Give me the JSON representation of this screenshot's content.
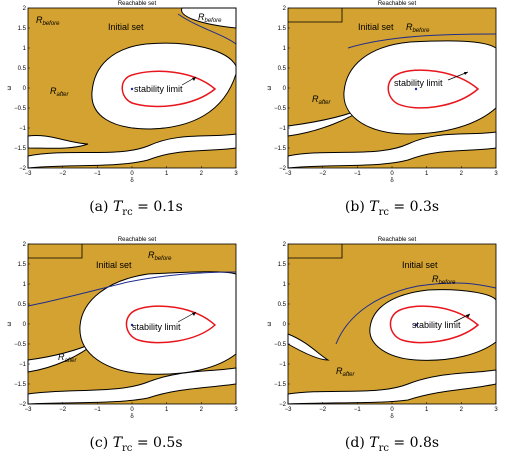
{
  "colors": {
    "region": "#d4a230",
    "boundary": "#000000",
    "stability": "#e8161c",
    "reach_curve": "#1f2d8c",
    "origin": "#1e2ba0"
  },
  "chart_data": [
    {
      "type": "contour",
      "title": "Reachable set",
      "xlabel": "δ",
      "ylabel": "ω",
      "xlim": [
        -3,
        3
      ],
      "ylim": [
        -2,
        2
      ],
      "xticks": [
        "−3",
        "−2",
        "−1",
        "0",
        "1",
        "2",
        "3"
      ],
      "yticks": [
        "2",
        "1.5",
        "1",
        "0.5",
        "0",
        "−0.5",
        "−1",
        "−1.5",
        "−2"
      ],
      "labels": {
        "before1": "R",
        "before1_sub": "before",
        "before2": "R",
        "before2_sub": "before",
        "after": "R",
        "after_sub": "after",
        "initial": "Initial set",
        "stability": "stability limit"
      },
      "caption": {
        "prefix": "(a) ",
        "var": "T",
        "sub": "rc",
        "rest": " = 0.1s"
      }
    },
    {
      "type": "contour",
      "title": "Reachable set",
      "xlabel": "δ",
      "ylabel": "ω",
      "xlim": [
        -3,
        3
      ],
      "ylim": [
        -2,
        2
      ],
      "xticks": [
        "−3",
        "−2",
        "−1",
        "0",
        "1",
        "2",
        "3"
      ],
      "yticks": [
        "2",
        "1.5",
        "1",
        "0.5",
        "0",
        "−0.5",
        "−1",
        "−1.5",
        "−2"
      ],
      "labels": {
        "before1": "R",
        "before1_sub": "before",
        "after": "R",
        "after_sub": "after",
        "initial": "Initial set",
        "stability": "stability limit"
      },
      "caption": {
        "prefix": "(b) ",
        "var": "T",
        "sub": "rc",
        "rest": " = 0.3s"
      }
    },
    {
      "type": "contour",
      "title": "Reachable set",
      "xlabel": "δ",
      "ylabel": "ω",
      "xlim": [
        -3,
        3
      ],
      "ylim": [
        -2,
        2
      ],
      "xticks": [
        "−3",
        "−2",
        "−1",
        "0",
        "1",
        "2",
        "3"
      ],
      "yticks": [
        "2",
        "1.5",
        "1",
        "0.5",
        "0",
        "−0.5",
        "−1",
        "−1.5",
        "−2"
      ],
      "labels": {
        "before1": "R",
        "before1_sub": "before",
        "after": "R",
        "after_sub": "after",
        "initial": "Initial set",
        "stability": "stability limit"
      },
      "caption": {
        "prefix": "(c) ",
        "var": "T",
        "sub": "rc",
        "rest": " = 0.5s"
      }
    },
    {
      "type": "contour",
      "title": "Reachable set",
      "xlabel": "δ",
      "ylabel": "ω",
      "xlim": [
        -3,
        3
      ],
      "ylim": [
        -2,
        2
      ],
      "xticks": [
        "−3",
        "−2",
        "−1",
        "0",
        "1",
        "2",
        "3"
      ],
      "yticks": [
        "2",
        "1.5",
        "1",
        "0.5",
        "0",
        "−0.5",
        "−1",
        "−1.5",
        "−2"
      ],
      "labels": {
        "before1": "R",
        "before1_sub": "before",
        "after": "R",
        "after_sub": "after",
        "initial": "Initial set",
        "stability": "stability limit"
      },
      "caption": {
        "prefix": "(d) ",
        "var": "T",
        "sub": "rc",
        "rest": " = 0.8s"
      }
    }
  ]
}
